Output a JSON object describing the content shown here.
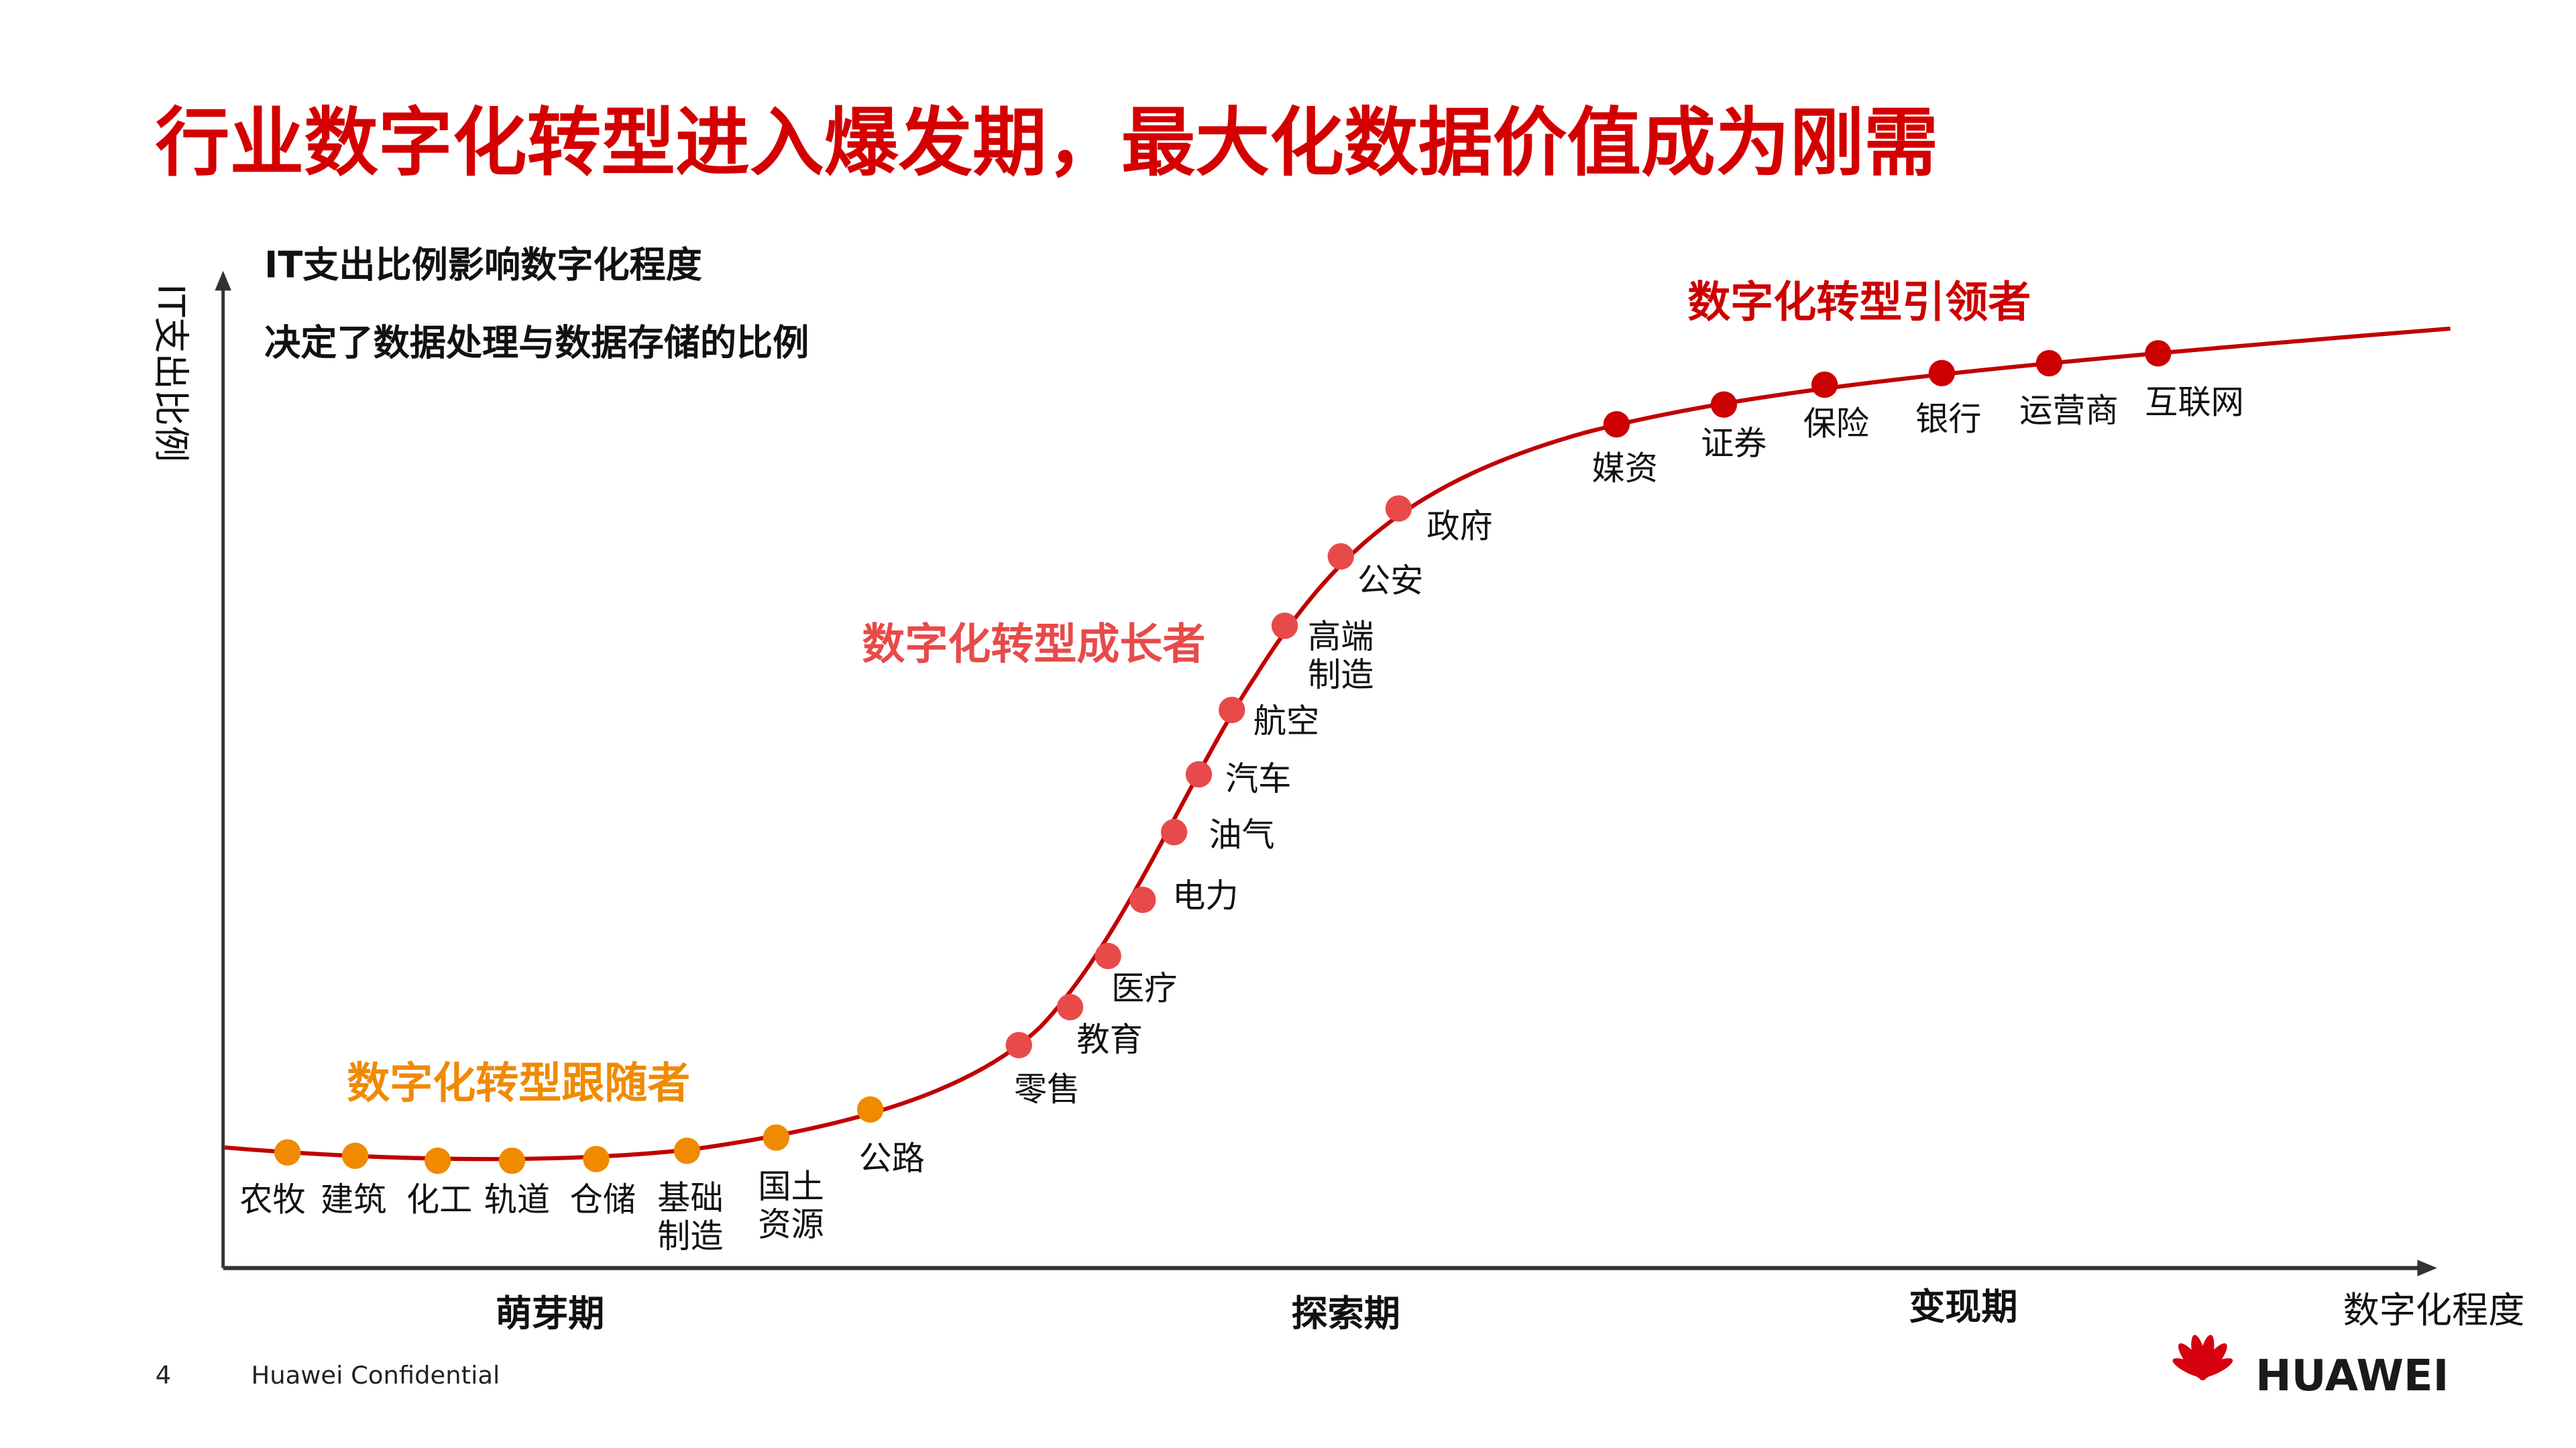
{
  "title": "行业数字化转型进入爆发期，最大化数据价值成为刚需",
  "subtitle_lines": [
    "IT支出比例影响数字化程度",
    "决定了数据处理与数据存储的比例"
  ],
  "y_axis_label": "IT支出比例",
  "x_axis_label": "数字化程度",
  "phases": [
    "萌芽期",
    "探索期",
    "变现期"
  ],
  "groups": [
    {
      "label": "数字化转型跟随者",
      "color": "#f08a00",
      "points": [
        "农牧",
        "建筑",
        "化工",
        "轨道",
        "仓储",
        "基础\n制造",
        "国土\n资源",
        "公路"
      ]
    },
    {
      "label": "数字化转型成长者",
      "color": "#e84a4a",
      "points": [
        "零售",
        "教育",
        "医疗",
        "电力",
        "油气",
        "汽车",
        "航空",
        "高端\n制造",
        "公安",
        "政府"
      ]
    },
    {
      "label": "数字化转型引领者",
      "color": "#cc0000",
      "points": [
        "媒资",
        "证券",
        "保险",
        "银行",
        "运营商",
        "互联网"
      ]
    }
  ],
  "colors": {
    "title": "#d40000",
    "curve": "#c00000"
  },
  "footer": {
    "page_number": "4",
    "confidential": "Huawei Confidential",
    "logo_text": "HUAWEI"
  }
}
